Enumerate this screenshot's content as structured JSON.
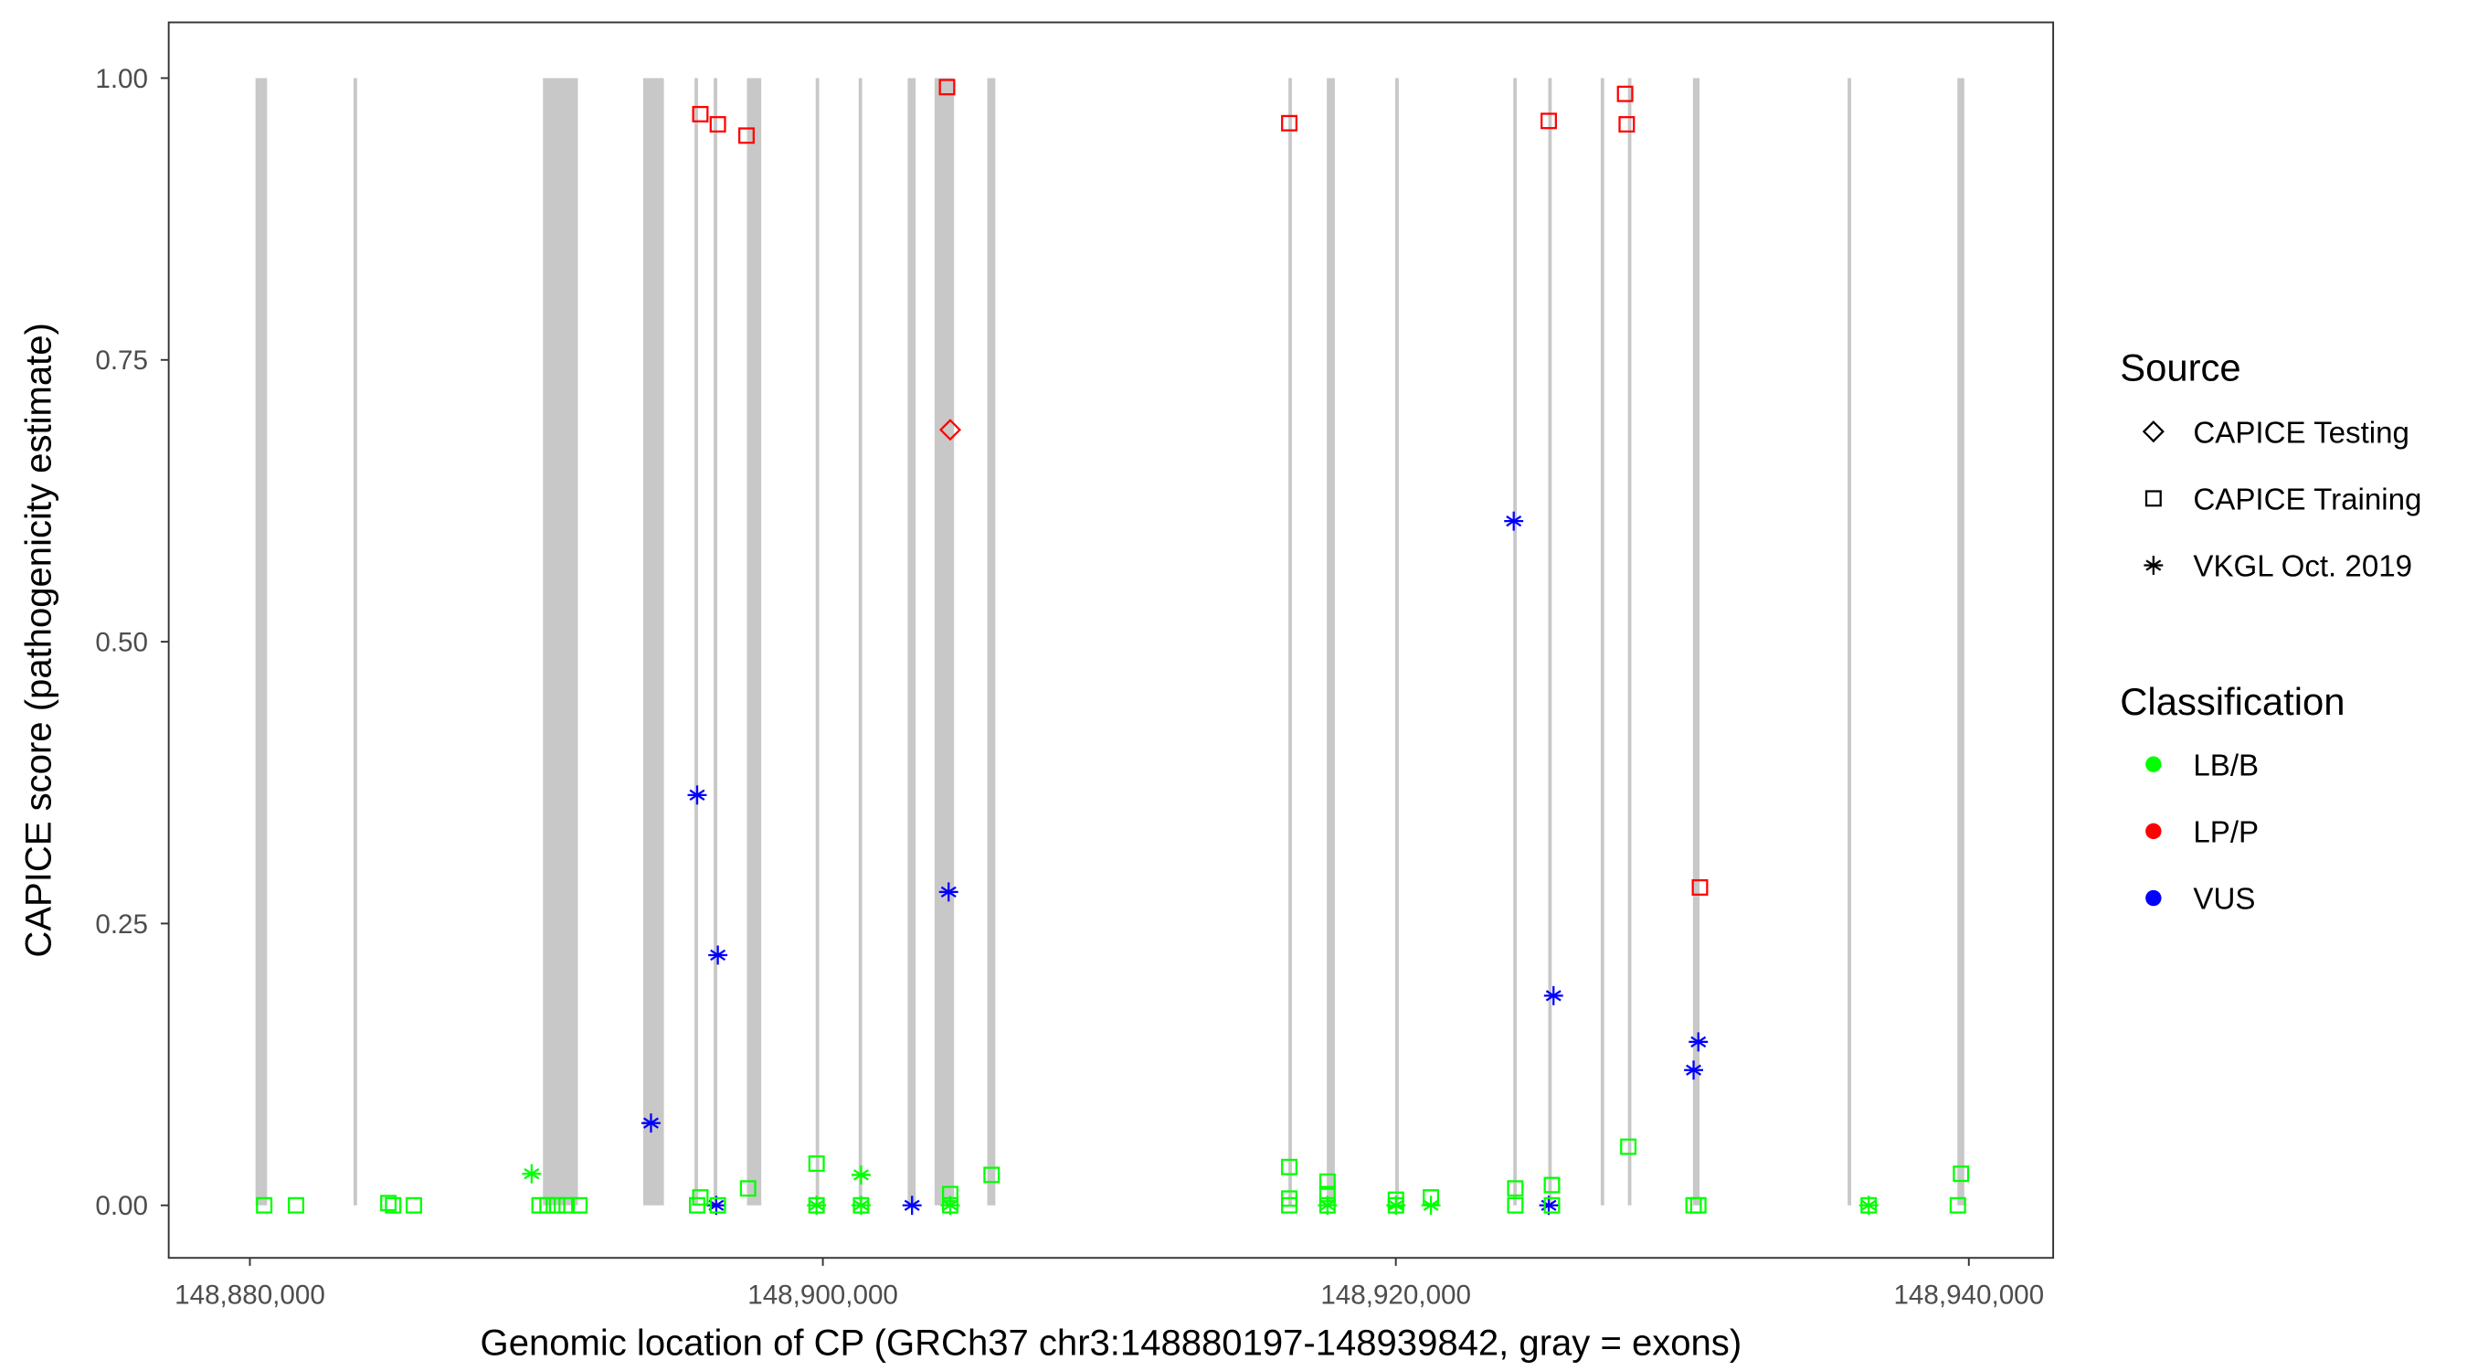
{
  "chart_data": {
    "type": "scatter",
    "xlabel": "Genomic location of CP (GRCh37 chr3:148880197-148939842, gray = exons)",
    "ylabel": "CAPICE score (pathogenicity estimate)",
    "xlim": [
      148878500,
      148941500
    ],
    "ylim": [
      -0.045,
      1.048
    ],
    "x_ticks": [
      148880000,
      148900000,
      148920000,
      148940000
    ],
    "x_tick_labels": [
      "148,880,000",
      "148,900,000",
      "148,920,000",
      "148,940,000"
    ],
    "y_ticks": [
      0,
      0.25,
      0.5,
      0.75,
      1.0
    ],
    "y_tick_labels": [
      "0.00",
      "0.25",
      "0.50",
      "0.75",
      "1.00"
    ],
    "grid": false,
    "legend_placement": "right",
    "legend": {
      "source_title": "Source",
      "sources": [
        {
          "key": "testing",
          "label": "CAPICE Testing",
          "shape": "diamond"
        },
        {
          "key": "training",
          "label": "CAPICE Training",
          "shape": "square"
        },
        {
          "key": "vkgl",
          "label": "VKGL Oct. 2019",
          "shape": "asterisk"
        }
      ],
      "class_title": "Classification",
      "classes": [
        {
          "key": "LB/B",
          "label": "LB/B",
          "color": "#00FF00"
        },
        {
          "key": "LP/P",
          "label": "LP/P",
          "color": "#FF0000"
        },
        {
          "key": "VUS",
          "label": "VUS",
          "color": "#0000FF"
        }
      ]
    },
    "exons": [
      [
        148880197,
        148880600
      ],
      [
        148883620,
        148883720
      ],
      [
        148890230,
        148891450
      ],
      [
        148893730,
        148894450
      ],
      [
        148895520,
        148895620
      ],
      [
        148896190,
        148896290
      ],
      [
        148897350,
        148897850
      ],
      [
        148899750,
        148899850
      ],
      [
        148901250,
        148901350
      ],
      [
        148902960,
        148903240
      ],
      [
        148903900,
        148904580
      ],
      [
        148905740,
        148906020
      ],
      [
        148916250,
        148916350
      ],
      [
        148917590,
        148917870
      ],
      [
        148919980,
        148920080
      ],
      [
        148924100,
        148924200
      ],
      [
        148925320,
        148925420
      ],
      [
        148927150,
        148927250
      ],
      [
        148928100,
        148928200
      ],
      [
        148930370,
        148930600
      ],
      [
        148935770,
        148935870
      ],
      [
        148939600,
        148939842
      ]
    ],
    "points": [
      {
        "x": 148895723,
        "y": 0.968,
        "source": "training",
        "class": "LP/P"
      },
      {
        "x": 148896334,
        "y": 0.959,
        "source": "training",
        "class": "LP/P"
      },
      {
        "x": 148897334,
        "y": 0.949,
        "source": "training",
        "class": "LP/P"
      },
      {
        "x": 148904335,
        "y": 0.992,
        "source": "training",
        "class": "LP/P"
      },
      {
        "x": 148916280,
        "y": 0.96,
        "source": "training",
        "class": "LP/P"
      },
      {
        "x": 148925337,
        "y": 0.962,
        "source": "training",
        "class": "LP/P"
      },
      {
        "x": 148928003,
        "y": 0.986,
        "source": "training",
        "class": "LP/P"
      },
      {
        "x": 148928059,
        "y": 0.959,
        "source": "training",
        "class": "LP/P"
      },
      {
        "x": 148930615,
        "y": 0.282,
        "source": "training",
        "class": "LP/P"
      },
      {
        "x": 148904446,
        "y": 0.688,
        "source": "testing",
        "class": "LP/P"
      },
      {
        "x": 148895612,
        "y": 0.364,
        "source": "vkgl",
        "class": "VUS"
      },
      {
        "x": 148896334,
        "y": 0.222,
        "source": "vkgl",
        "class": "VUS"
      },
      {
        "x": 148894001,
        "y": 0.073,
        "source": "vkgl",
        "class": "VUS"
      },
      {
        "x": 148904390,
        "y": 0.278,
        "source": "vkgl",
        "class": "VUS"
      },
      {
        "x": 148896279,
        "y": 0.0,
        "source": "vkgl",
        "class": "VUS"
      },
      {
        "x": 148903113,
        "y": 0.0,
        "source": "vkgl",
        "class": "VUS"
      },
      {
        "x": 148924115,
        "y": 0.607,
        "source": "vkgl",
        "class": "VUS"
      },
      {
        "x": 148925504,
        "y": 0.186,
        "source": "vkgl",
        "class": "VUS"
      },
      {
        "x": 148925337,
        "y": 0.0,
        "source": "vkgl",
        "class": "VUS"
      },
      {
        "x": 148930559,
        "y": 0.145,
        "source": "vkgl",
        "class": "VUS"
      },
      {
        "x": 148930393,
        "y": 0.12,
        "source": "vkgl",
        "class": "VUS"
      },
      {
        "x": 148889834,
        "y": 0.028,
        "source": "vkgl",
        "class": "LB/B"
      },
      {
        "x": 148901335,
        "y": 0.027,
        "source": "vkgl",
        "class": "LB/B"
      },
      {
        "x": 148899780,
        "y": 0.0,
        "source": "vkgl",
        "class": "LB/B"
      },
      {
        "x": 148901335,
        "y": 0.0,
        "source": "vkgl",
        "class": "LB/B"
      },
      {
        "x": 148904446,
        "y": 0.0,
        "source": "vkgl",
        "class": "LB/B"
      },
      {
        "x": 148917614,
        "y": 0.0,
        "source": "vkgl",
        "class": "LB/B"
      },
      {
        "x": 148920003,
        "y": 0.0,
        "source": "vkgl",
        "class": "LB/B"
      },
      {
        "x": 148921225,
        "y": 0.0,
        "source": "vkgl",
        "class": "LB/B"
      },
      {
        "x": 148936505,
        "y": 0.0,
        "source": "vkgl",
        "class": "LB/B"
      },
      {
        "x": 148880500,
        "y": 0.0,
        "source": "training",
        "class": "LB/B"
      },
      {
        "x": 148881611,
        "y": 0.0,
        "source": "training",
        "class": "LB/B"
      },
      {
        "x": 148884834,
        "y": 0.002,
        "source": "training",
        "class": "LB/B"
      },
      {
        "x": 148885000,
        "y": 0.0,
        "source": "training",
        "class": "LB/B"
      },
      {
        "x": 148885723,
        "y": 0.0,
        "source": "training",
        "class": "LB/B"
      },
      {
        "x": 148890112,
        "y": 0.0,
        "source": "training",
        "class": "LB/B"
      },
      {
        "x": 148890390,
        "y": 0.0,
        "source": "training",
        "class": "LB/B"
      },
      {
        "x": 148890723,
        "y": 0.0,
        "source": "training",
        "class": "LB/B"
      },
      {
        "x": 148891057,
        "y": 0.0,
        "source": "training",
        "class": "LB/B"
      },
      {
        "x": 148891501,
        "y": 0.0,
        "source": "training",
        "class": "LB/B"
      },
      {
        "x": 148895612,
        "y": 0.0,
        "source": "training",
        "class": "LB/B"
      },
      {
        "x": 148895723,
        "y": 0.007,
        "source": "training",
        "class": "LB/B"
      },
      {
        "x": 148896334,
        "y": 0.0,
        "source": "training",
        "class": "LB/B"
      },
      {
        "x": 148897390,
        "y": 0.015,
        "source": "training",
        "class": "LB/B"
      },
      {
        "x": 148899780,
        "y": 0.037,
        "source": "training",
        "class": "LB/B"
      },
      {
        "x": 148899780,
        "y": 0.0,
        "source": "training",
        "class": "LB/B"
      },
      {
        "x": 148901335,
        "y": 0.0,
        "source": "training",
        "class": "LB/B"
      },
      {
        "x": 148904446,
        "y": 0.01,
        "source": "training",
        "class": "LB/B"
      },
      {
        "x": 148904446,
        "y": 0.0,
        "source": "training",
        "class": "LB/B"
      },
      {
        "x": 148905890,
        "y": 0.027,
        "source": "training",
        "class": "LB/B"
      },
      {
        "x": 148916280,
        "y": 0.034,
        "source": "training",
        "class": "LB/B"
      },
      {
        "x": 148916280,
        "y": 0.006,
        "source": "training",
        "class": "LB/B"
      },
      {
        "x": 148916280,
        "y": 0.0,
        "source": "training",
        "class": "LB/B"
      },
      {
        "x": 148917614,
        "y": 0.021,
        "source": "training",
        "class": "LB/B"
      },
      {
        "x": 148917614,
        "y": 0.01,
        "source": "training",
        "class": "LB/B"
      },
      {
        "x": 148917614,
        "y": 0.0,
        "source": "training",
        "class": "LB/B"
      },
      {
        "x": 148920003,
        "y": 0.005,
        "source": "training",
        "class": "LB/B"
      },
      {
        "x": 148920003,
        "y": 0.0,
        "source": "training",
        "class": "LB/B"
      },
      {
        "x": 148921225,
        "y": 0.007,
        "source": "training",
        "class": "LB/B"
      },
      {
        "x": 148924170,
        "y": 0.015,
        "source": "training",
        "class": "LB/B"
      },
      {
        "x": 148924170,
        "y": 0.0,
        "source": "training",
        "class": "LB/B"
      },
      {
        "x": 148925448,
        "y": 0.018,
        "source": "training",
        "class": "LB/B"
      },
      {
        "x": 148925448,
        "y": 0.0,
        "source": "training",
        "class": "LB/B"
      },
      {
        "x": 148928114,
        "y": 0.052,
        "source": "training",
        "class": "LB/B"
      },
      {
        "x": 148930393,
        "y": 0.0,
        "source": "training",
        "class": "LB/B"
      },
      {
        "x": 148930559,
        "y": 0.0,
        "source": "training",
        "class": "LB/B"
      },
      {
        "x": 148936505,
        "y": 0.0,
        "source": "training",
        "class": "LB/B"
      },
      {
        "x": 148939617,
        "y": 0.0,
        "source": "training",
        "class": "LB/B"
      },
      {
        "x": 148939728,
        "y": 0.028,
        "source": "training",
        "class": "LB/B"
      }
    ]
  }
}
